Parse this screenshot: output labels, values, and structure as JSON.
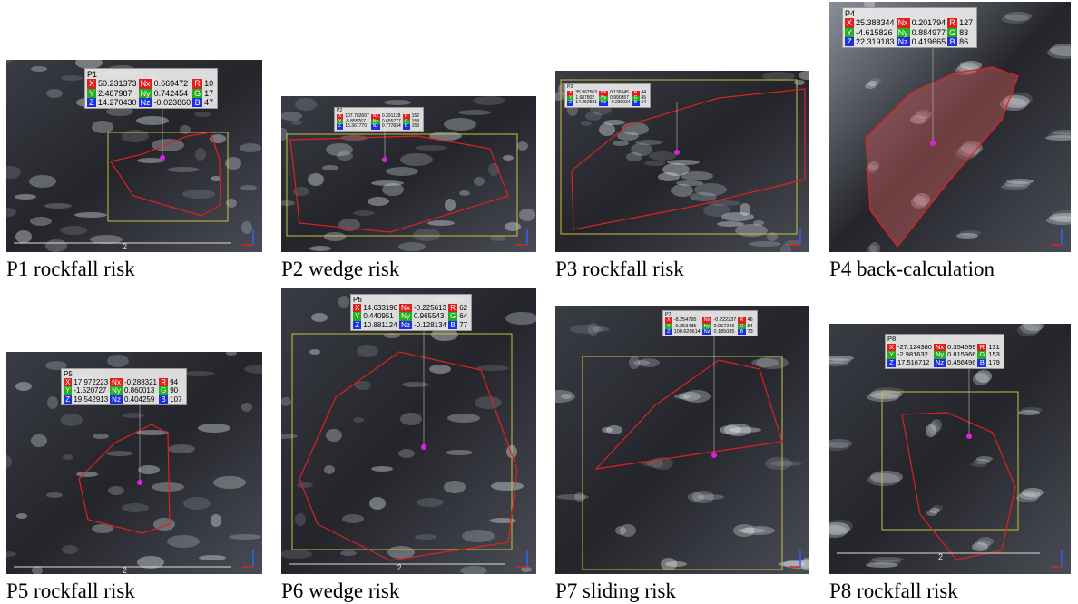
{
  "field_labels": [
    [
      "X",
      "Nx",
      "R"
    ],
    [
      "Y",
      "Ny",
      "G"
    ],
    [
      "Z",
      "Nz",
      "B"
    ]
  ],
  "panels": [
    {
      "label": "P1",
      "caption": "P1 rockfall risk",
      "scale": "2",
      "rows": [
        [
          "50.231373",
          "0.669472",
          "10"
        ],
        [
          "2.487987",
          "0.742454",
          "17"
        ],
        [
          "14.270430",
          "-0.023860",
          "47"
        ]
      ]
    },
    {
      "label": "P2",
      "caption": "P2 wedge risk",
      "rows": [
        [
          "107.782607",
          "0.391128",
          "152"
        ],
        [
          "-5.855767",
          "0.655777",
          "158"
        ],
        [
          "16.367770",
          "0.777834",
          "158"
        ]
      ]
    },
    {
      "label": "P3",
      "caption": "P3 rockfall risk",
      "rows": [
        [
          "35.962563",
          "0.136645",
          "44"
        ],
        [
          "1.687802",
          "0.990357",
          "45"
        ],
        [
          "14.252581",
          "-0.239934",
          "54"
        ]
      ]
    },
    {
      "label": "P4",
      "caption": "P4 back-calculation",
      "rows": [
        [
          "25.388344",
          "0.201794",
          "127"
        ],
        [
          "-4.615826",
          "0.884977",
          "83"
        ],
        [
          "22.319183",
          "0.419665",
          "86"
        ]
      ]
    },
    {
      "label": "P5",
      "caption": "P5 rockfall risk",
      "scale": "2",
      "rows": [
        [
          "17.972223",
          "-0.288321",
          "94"
        ],
        [
          "-1.520727",
          "0.860013",
          "90"
        ],
        [
          "19.542913",
          "0.404259",
          "107"
        ]
      ]
    },
    {
      "label": "P6",
      "caption": "P6 wedge risk",
      "scale": "2",
      "rows": [
        [
          "14.633190",
          "-0.225613",
          "62"
        ],
        [
          "0.440951",
          "0.965543",
          "64"
        ],
        [
          "10.881124",
          "-0.128134",
          "77"
        ]
      ]
    },
    {
      "label": "P7",
      "caption": "P7 sliding risk",
      "rows": [
        [
          "-8.254795",
          "-0.222237",
          "46"
        ],
        [
          "-0.253435",
          "0.957246",
          "54"
        ],
        [
          "100.629614",
          "0.185035",
          "73"
        ]
      ]
    },
    {
      "label": "P8",
      "caption": "P8 rockfall risk",
      "scale": "2",
      "rows": [
        [
          "-27.124380",
          "0.354699",
          "131"
        ],
        [
          "-2.981632",
          "0.815966",
          "153"
        ],
        [
          "17.516712",
          "0.456496",
          "179"
        ]
      ]
    }
  ]
}
